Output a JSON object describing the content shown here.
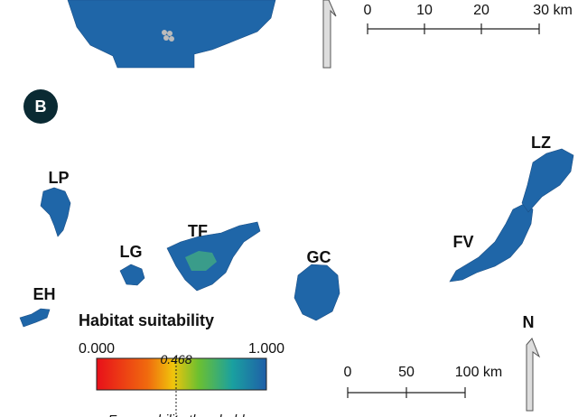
{
  "panel_a": {
    "scale_labels": [
      "0",
      "10",
      "20",
      "30 km"
    ]
  },
  "panel_b": {
    "panel_label": "B",
    "islands": [
      "LP",
      "LG",
      "TF",
      "GC",
      "FV",
      "LZ",
      "EH"
    ],
    "north": "N",
    "scale_labels": [
      "0",
      "50",
      "100 km"
    ],
    "legend": {
      "title": "Habitat suitability",
      "min": {
        "value": 0,
        "label": "0.000"
      },
      "max": {
        "value": 1,
        "label": "1.000"
      },
      "threshold": {
        "value": 0.468,
        "label": "0.468"
      },
      "threshold_name": "Favourability threshold"
    }
  }
}
